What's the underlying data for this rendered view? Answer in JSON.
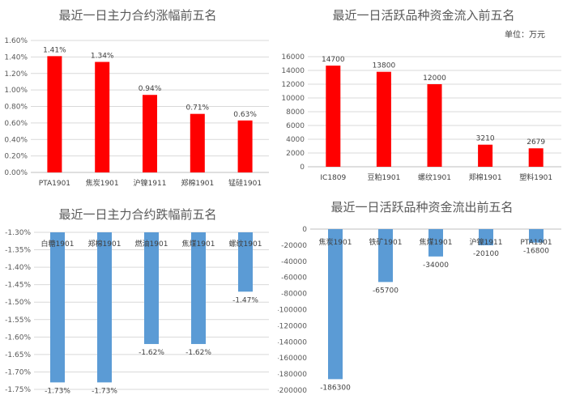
{
  "chart_data": [
    {
      "type": "bar",
      "title": "最近一日主力合约涨幅前五名",
      "categories": [
        "PTA1901",
        "焦炭1901",
        "沪镍1911",
        "郑棉1901",
        "锰硅1901"
      ],
      "values": [
        1.41,
        1.34,
        0.94,
        0.71,
        0.63
      ],
      "value_labels": [
        "1.41%",
        "1.34%",
        "0.94%",
        "0.71%",
        "0.63%"
      ],
      "yticks": [
        "0.00%",
        "0.20%",
        "0.40%",
        "0.60%",
        "0.80%",
        "1.00%",
        "1.20%",
        "1.40%",
        "1.60%"
      ],
      "ylim": [
        0,
        1.6
      ],
      "grid": true,
      "color": "#ff0000"
    },
    {
      "type": "bar",
      "title": "最近一日活跃品种资金流入前五名",
      "unit": "单位：万元",
      "categories": [
        "IC1809",
        "豆粕1901",
        "螺纹1901",
        "郑棉1901",
        "塑料1901"
      ],
      "values": [
        14700,
        13800,
        12000,
        3210,
        2679
      ],
      "value_labels": [
        "14700",
        "13800",
        "12000",
        "3210",
        "2679"
      ],
      "yticks": [
        "0",
        "2000",
        "4000",
        "6000",
        "8000",
        "10000",
        "12000",
        "14000",
        "16000"
      ],
      "ylim": [
        0,
        16000
      ],
      "grid": true,
      "color": "#ff0000"
    },
    {
      "type": "bar",
      "title": "最近一日主力合约跌幅前五名",
      "categories": [
        "白糖1901",
        "郑棉1901",
        "燃油1901",
        "焦煤1901",
        "螺纹1901"
      ],
      "values": [
        -1.73,
        -1.73,
        -1.62,
        -1.62,
        -1.47
      ],
      "value_labels": [
        "-1.73%",
        "-1.73%",
        "-1.62%",
        "-1.62%",
        "-1.47%"
      ],
      "yticks": [
        "-1.30%",
        "-1.35%",
        "-1.40%",
        "-1.45%",
        "-1.50%",
        "-1.55%",
        "-1.60%",
        "-1.65%",
        "-1.70%",
        "-1.75%"
      ],
      "ylim": [
        -1.75,
        -1.3
      ],
      "grid": true,
      "color": "#5b9bd5"
    },
    {
      "type": "bar",
      "title": "最近一日活跃品种资金流出前五名",
      "categories": [
        "焦炭1901",
        "铁矿1901",
        "焦煤1901",
        "沪镍1911",
        "PTA1901"
      ],
      "values": [
        -186300,
        -65700,
        -34000,
        -20100,
        -16800
      ],
      "value_labels": [
        "-186300",
        "-65700",
        "-34000",
        "-20100",
        "-16800"
      ],
      "yticks": [
        "0",
        "-20000",
        "-40000",
        "-60000",
        "-80000",
        "-100000",
        "-120000",
        "-140000",
        "-160000",
        "-180000",
        "-200000"
      ],
      "ylim": [
        -200000,
        0
      ],
      "grid": false,
      "color": "#5b9bd5"
    }
  ]
}
